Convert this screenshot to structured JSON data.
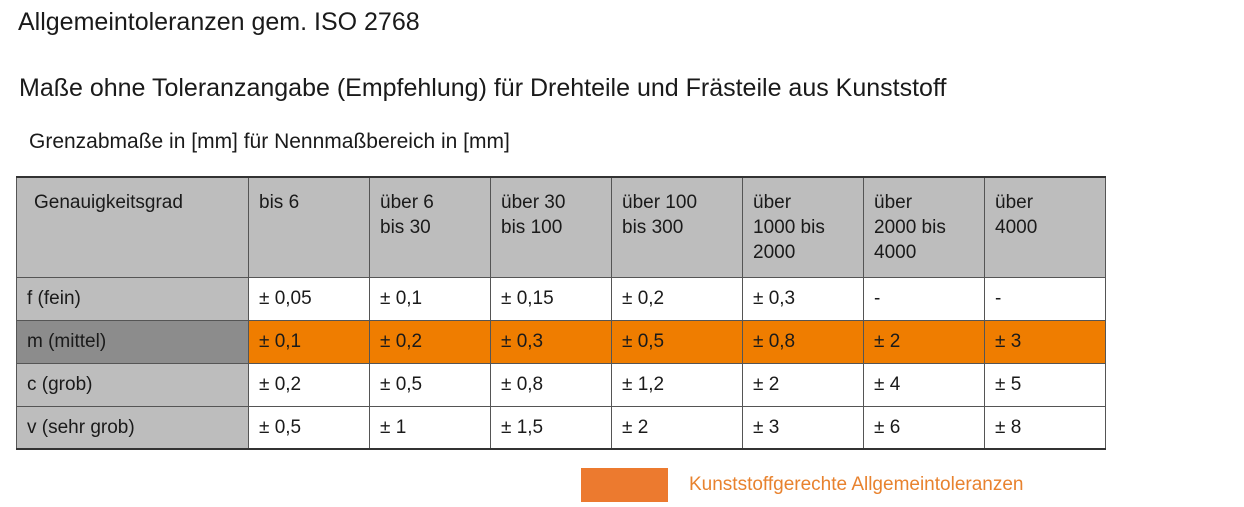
{
  "title": "Allgemeintoleranzen gem. ISO 2768",
  "subtitle": "Maße ohne Toleranzangabe (Empfehlung) für Drehteile und Frästeile aus Kunststoff",
  "caption": "Grenzabmaße in [mm] für Nennmaßbereich in [mm]",
  "table": {
    "headers": [
      [
        "Genauigkeitsgrad"
      ],
      [
        "bis 6"
      ],
      [
        "über 6",
        "bis 30"
      ],
      [
        "über 30",
        "bis 100"
      ],
      [
        "über 100",
        "bis 300"
      ],
      [
        "über",
        "1000 bis",
        "2000"
      ],
      [
        "über",
        "2000 bis",
        "4000"
      ],
      [
        "über",
        "4000"
      ]
    ],
    "rows": [
      [
        "f (fein)",
        "± 0,05",
        "± 0,1",
        "± 0,15",
        "± 0,2",
        "± 0,3",
        "-",
        "-"
      ],
      [
        "m (mittel)",
        "± 0,1",
        "± 0,2",
        "± 0,3",
        "± 0,5",
        "± 0,8",
        "± 2",
        "± 3"
      ],
      [
        "c (grob)",
        "± 0,2",
        "± 0,5",
        "± 0,8",
        "± 1,2",
        "± 2",
        "± 4",
        "± 5"
      ],
      [
        "v (sehr grob)",
        "± 0,5",
        "± 1",
        "± 1,5",
        "± 2",
        "± 3",
        "± 6",
        "± 8"
      ]
    ],
    "highlight_row_index": 1
  },
  "legend": {
    "label": "Kunststoffgerechte Allgemeintoleranzen",
    "swatch_color": "#ec7a2f"
  },
  "colors": {
    "header_gray": "#bdbdbd",
    "highlight_orange": "#ef7d00",
    "highlight_rowhead_gray": "#8c8c8c",
    "legend_text": "#e8822e"
  }
}
